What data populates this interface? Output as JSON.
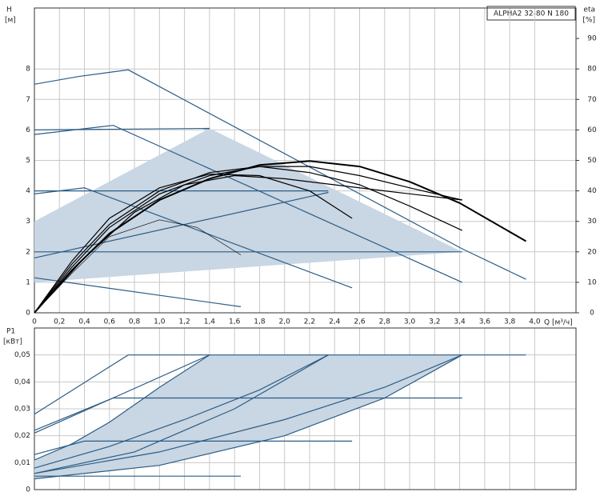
{
  "chart_data": [
    {
      "type": "line",
      "title": "ALPHA2 32-80 N 180",
      "y_label": "H",
      "y_unit": "[м]",
      "y2_label": "eta",
      "y2_unit": "[%]",
      "x_label": "Q [м³/ч]",
      "xlim": [
        0,
        4.33
      ],
      "ylim": [
        0,
        10
      ],
      "y2lim": [
        0,
        100
      ],
      "grid": true,
      "xticks": [
        0,
        {
          "value": 0.2,
          "label": "0,2"
        },
        {
          "value": 0.4,
          "label": "0,4"
        },
        {
          "value": 0.6,
          "label": "0,6"
        },
        {
          "value": 0.8,
          "label": "0,8"
        },
        {
          "value": 1.0,
          "label": "1,0"
        },
        {
          "value": 1.2,
          "label": "1,2"
        },
        {
          "value": 1.4,
          "label": "1,4"
        },
        {
          "value": 1.6,
          "label": "1,6"
        },
        {
          "value": 1.8,
          "label": "1,8"
        },
        {
          "value": 2.0,
          "label": "2,0"
        },
        {
          "value": 2.2,
          "label": "2,2"
        },
        {
          "value": 2.4,
          "label": "2,4"
        },
        {
          "value": 2.6,
          "label": "2,6"
        },
        {
          "value": 2.8,
          "label": "2,8"
        },
        {
          "value": 3.0,
          "label": "3,0"
        },
        {
          "value": 3.2,
          "label": "3,2"
        },
        {
          "value": 3.4,
          "label": "3,4"
        },
        {
          "value": 3.6,
          "label": "3,6"
        },
        {
          "value": 3.8,
          "label": "3,8"
        },
        {
          "value": 4.0,
          "label": "4,0"
        }
      ],
      "yticks": [
        0,
        1,
        2,
        3,
        4,
        5,
        6,
        7,
        8
      ],
      "y2ticks": [
        0,
        10,
        20,
        30,
        40,
        50,
        60,
        70,
        80,
        90
      ],
      "series": [
        {
          "color": "#c9d6e3",
          "fill": true,
          "x": [
            0,
            0,
            1.4,
            3.42,
            0
          ],
          "values": [
            1.0,
            3.0,
            6.05,
            2.0,
            1.0
          ]
        },
        {
          "color": "#2b5d86",
          "x": [
            0,
            0.35,
            0.75,
            3.42,
            3.93
          ],
          "values": [
            7.5,
            7.75,
            7.97,
            2.1,
            1.1
          ]
        },
        {
          "color": "#2b5d86",
          "x": [
            0,
            0.63,
            3.42
          ],
          "values": [
            5.85,
            6.15,
            1.0
          ]
        },
        {
          "color": "#2b5d86",
          "x": [
            0,
            0.4,
            2.54
          ],
          "values": [
            3.9,
            4.1,
            0.82
          ]
        },
        {
          "color": "#2b5d86",
          "x": [
            0,
            1.65
          ],
          "values": [
            1.15,
            0.2
          ]
        },
        {
          "color": "#2b5d86",
          "x": [
            0,
            1.4
          ],
          "values": [
            6.0,
            6.05
          ]
        },
        {
          "color": "#2b5d86",
          "x": [
            0,
            2.35
          ],
          "values": [
            4.0,
            4.0
          ]
        },
        {
          "color": "#2b5d86",
          "x": [
            0,
            3.42
          ],
          "values": [
            2.0,
            2.0
          ]
        },
        {
          "color": "#2b5d86",
          "x": [
            0,
            2.35
          ],
          "values": [
            1.8,
            3.95
          ]
        },
        {
          "color": "#000000",
          "axis": "y2",
          "line_width": 2,
          "x": [
            0,
            0.3,
            0.6,
            1.0,
            1.4,
            1.8,
            2.2,
            2.6,
            3.0,
            3.4,
            3.93
          ],
          "values": [
            0,
            14,
            26,
            37,
            44,
            48.5,
            49.8,
            48,
            43,
            36,
            23.5
          ]
        },
        {
          "color": "#000000",
          "axis": "y2",
          "x": [
            0,
            0.3,
            0.6,
            1.0,
            1.4,
            1.8,
            2.2,
            2.6,
            3.0,
            3.42
          ],
          "values": [
            0,
            15,
            28,
            39,
            45,
            48,
            48,
            45,
            41,
            37
          ]
        },
        {
          "color": "#000000",
          "axis": "y2",
          "x": [
            0,
            0.3,
            0.6,
            1.0,
            1.4,
            1.8,
            2.2,
            2.6,
            3.0,
            3.42
          ],
          "values": [
            0,
            16,
            29,
            40,
            46,
            48,
            46,
            42,
            35,
            27
          ]
        },
        {
          "color": "#000000",
          "axis": "y2",
          "x": [
            0,
            0.3,
            0.6,
            1.0,
            1.4,
            1.8,
            2.2,
            2.54
          ],
          "values": [
            0,
            17,
            31,
            41,
            45.5,
            45,
            40,
            31
          ]
        },
        {
          "color": "#000000",
          "axis": "y2",
          "x": [
            0,
            0.4,
            0.8,
            1.2,
            1.6,
            2.0,
            2.4,
            2.8,
            3.42
          ],
          "values": [
            0,
            18,
            33,
            42,
            45,
            44,
            42,
            40,
            37
          ]
        },
        {
          "color": "#000000",
          "axis": "y2",
          "line_width": 0.6,
          "x": [
            0,
            0.3,
            0.6,
            1.0,
            1.3,
            1.65
          ],
          "values": [
            0,
            13,
            25,
            30.5,
            28,
            19
          ]
        }
      ]
    },
    {
      "type": "line",
      "y_label": "P1",
      "y_unit": "[кВт]",
      "xlim": [
        0,
        4.33
      ],
      "ylim": [
        0,
        0.06
      ],
      "grid": true,
      "yticks": [
        0,
        {
          "value": 0.01,
          "label": "0,01"
        },
        {
          "value": 0.02,
          "label": "0,02"
        },
        {
          "value": 0.03,
          "label": "0,03"
        },
        {
          "value": 0.04,
          "label": "0,04"
        },
        {
          "value": 0.05,
          "label": "0,05"
        }
      ],
      "series": [
        {
          "color": "#c9d6e3",
          "fill": true,
          "x": [
            0,
            1.0,
            2.0,
            2.8,
            3.42,
            1.4,
            1.0,
            0.6,
            0.3,
            0
          ],
          "values": [
            0.004,
            0.009,
            0.02,
            0.034,
            0.05,
            0.05,
            0.038,
            0.025,
            0.017,
            0.011
          ]
        },
        {
          "color": "#2b5d86",
          "x": [
            0,
            0.75,
            3.93
          ],
          "values": [
            0.028,
            0.05,
            0.05
          ]
        },
        {
          "color": "#2b5d86",
          "x": [
            0,
            1.0,
            2.0,
            2.8,
            3.42
          ],
          "values": [
            0.004,
            0.009,
            0.02,
            0.034,
            0.05
          ]
        },
        {
          "color": "#2b5d86",
          "x": [
            0,
            0.3,
            0.6,
            1.0,
            1.4
          ],
          "values": [
            0.011,
            0.017,
            0.025,
            0.038,
            0.05
          ]
        },
        {
          "color": "#2b5d86",
          "x": [
            0,
            1.4
          ],
          "values": [
            0.021,
            0.05
          ]
        },
        {
          "color": "#2b5d86",
          "x": [
            0,
            0.63,
            3.42
          ],
          "values": [
            0.022,
            0.034,
            0.034
          ]
        },
        {
          "color": "#2b5d86",
          "x": [
            0,
            0.4,
            2.54
          ],
          "values": [
            0.013,
            0.018,
            0.018
          ]
        },
        {
          "color": "#2b5d86",
          "x": [
            0,
            1.65
          ],
          "values": [
            0.005,
            0.005
          ]
        },
        {
          "color": "#2b5d86",
          "x": [
            0,
            0.6,
            1.2,
            1.8,
            2.35
          ],
          "values": [
            0.008,
            0.016,
            0.026,
            0.037,
            0.05
          ]
        },
        {
          "color": "#2b5d86",
          "x": [
            0,
            0.8,
            1.6,
            2.35
          ],
          "values": [
            0.006,
            0.014,
            0.03,
            0.05
          ]
        },
        {
          "color": "#2b5d86",
          "x": [
            0,
            1.0,
            2.0,
            2.8,
            3.42
          ],
          "values": [
            0.006,
            0.014,
            0.026,
            0.038,
            0.05
          ]
        }
      ]
    }
  ]
}
